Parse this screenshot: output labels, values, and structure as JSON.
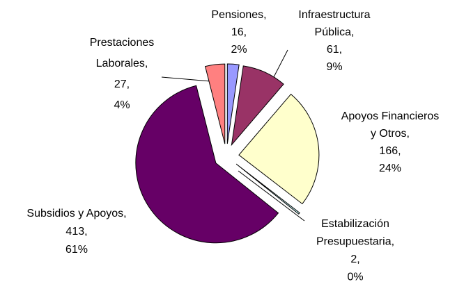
{
  "chart_data": {
    "type": "pie",
    "values": [
      16,
      61,
      166,
      2,
      413,
      27
    ],
    "labels": [
      [
        "Pensiones,",
        "16,",
        "2%"
      ],
      [
        "Infraestructura",
        "Pública,",
        "61,",
        "9%"
      ],
      [
        "Apoyos Financieros",
        "y Otros,",
        "166,",
        "24%"
      ],
      [
        "Estabilización",
        "Presupuestaria,",
        "2,",
        "0%"
      ],
      [
        "Subsidios y Apoyos,",
        "413,",
        "61%"
      ],
      [
        "Prestaciones",
        "Laborales,",
        "27,",
        "4%"
      ]
    ],
    "colors": [
      "#9999ff",
      "#993366",
      "#ffffcc",
      "#ccffff",
      "#660066",
      "#ff8080"
    ]
  }
}
